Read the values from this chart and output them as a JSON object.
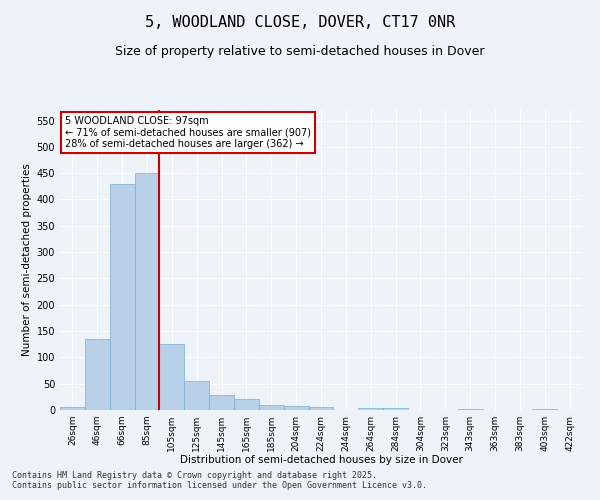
{
  "title": "5, WOODLAND CLOSE, DOVER, CT17 0NR",
  "subtitle": "Size of property relative to semi-detached houses in Dover",
  "xlabel": "Distribution of semi-detached houses by size in Dover",
  "ylabel": "Number of semi-detached properties",
  "categories": [
    "26sqm",
    "46sqm",
    "66sqm",
    "85sqm",
    "105sqm",
    "125sqm",
    "145sqm",
    "165sqm",
    "185sqm",
    "204sqm",
    "224sqm",
    "244sqm",
    "264sqm",
    "284sqm",
    "304sqm",
    "323sqm",
    "343sqm",
    "363sqm",
    "383sqm",
    "403sqm",
    "422sqm"
  ],
  "values": [
    5,
    135,
    430,
    450,
    125,
    55,
    28,
    20,
    10,
    7,
    5,
    0,
    4,
    3,
    0,
    0,
    1,
    0,
    0,
    1,
    0
  ],
  "bar_color": "#b8d0e8",
  "bar_edge_color": "#7aafd4",
  "vline_x_index": 3.5,
  "vline_color": "#cc0000",
  "annotation_text": "5 WOODLAND CLOSE: 97sqm\n← 71% of semi-detached houses are smaller (907)\n28% of semi-detached houses are larger (362) →",
  "annotation_box_color": "#ffffff",
  "annotation_box_edge": "#cc0000",
  "ylim": [
    0,
    570
  ],
  "yticks": [
    0,
    50,
    100,
    150,
    200,
    250,
    300,
    350,
    400,
    450,
    500,
    550
  ],
  "footer_text": "Contains HM Land Registry data © Crown copyright and database right 2025.\nContains public sector information licensed under the Open Government Licence v3.0.",
  "bg_color": "#eef2f9",
  "grid_color": "#ffffff",
  "title_fontsize": 11,
  "subtitle_fontsize": 9,
  "tick_fontsize": 6.5,
  "ylabel_fontsize": 7.5,
  "xlabel_fontsize": 7.5,
  "footer_fontsize": 6.0
}
